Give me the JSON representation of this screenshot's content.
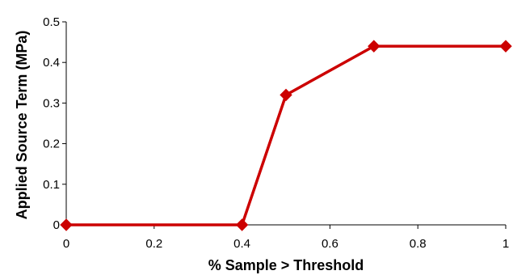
{
  "chart_data": {
    "type": "line",
    "title": "",
    "xlabel": "% Sample > Threshold",
    "ylabel": "Applied Source Term (MPa)",
    "xlim": [
      0,
      1
    ],
    "ylim": [
      0,
      0.5
    ],
    "x_ticks": [
      "0",
      "0.2",
      "0.4",
      "0.6",
      "0.8",
      "1"
    ],
    "y_ticks": [
      "0",
      "0.1",
      "0.2",
      "0.3",
      "0.4",
      "0.5"
    ],
    "grid": false,
    "legend": "none",
    "marker": "diamond",
    "series_color": "#cc0000",
    "series": [
      {
        "x": [
          0,
          0.4,
          0.5,
          0.7,
          1.0
        ],
        "y": [
          0,
          0,
          0.32,
          0.44,
          0.44
        ]
      }
    ]
  }
}
